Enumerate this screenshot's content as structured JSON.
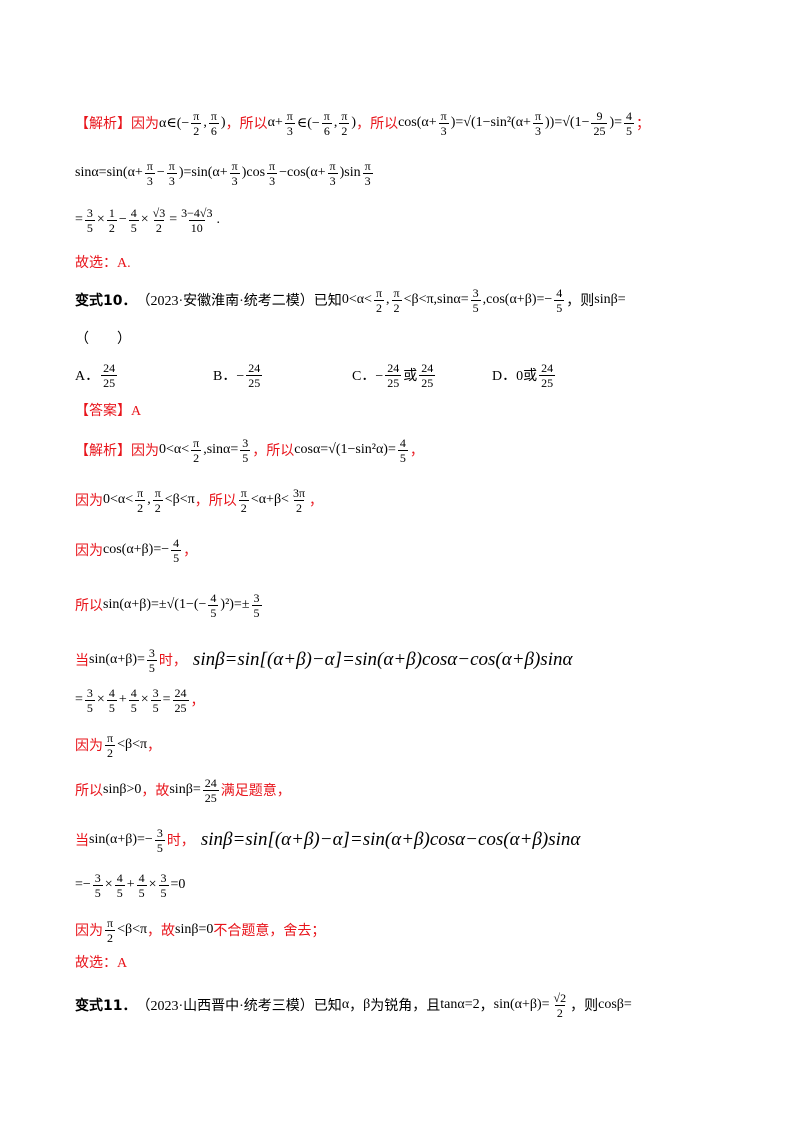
{
  "lines": [
    [
      {
        "r": "【解析】因为"
      },
      "α∈(−",
      {
        "n": "π",
        "d": "2"
      },
      ",",
      {
        "n": "π",
        "d": "6"
      },
      ")",
      {
        "r": "，所以"
      },
      "α+",
      {
        "n": "π",
        "d": "3"
      },
      "∈(−",
      {
        "n": "π",
        "d": "6"
      },
      ",",
      {
        "n": "π",
        "d": "2"
      },
      ")",
      {
        "r": "，所以"
      },
      "cos(α+",
      {
        "n": "π",
        "d": "3"
      },
      ")=√(1−sin²(α+",
      {
        "n": "π",
        "d": "3"
      },
      "))=√(1−",
      {
        "n": "9",
        "d": "25"
      },
      ")=",
      {
        "n": "4",
        "d": "5"
      },
      {
        "r": "；"
      }
    ],
    [
      "sinα=sin(α+",
      {
        "n": "π",
        "d": "3"
      },
      "−",
      {
        "n": "π",
        "d": "3"
      },
      ")=sin(α+",
      {
        "n": "π",
        "d": "3"
      },
      ")cos",
      {
        "n": "π",
        "d": "3"
      },
      "−cos(α+",
      {
        "n": "π",
        "d": "3"
      },
      ")sin",
      {
        "n": "π",
        "d": "3"
      }
    ],
    [
      "=",
      {
        "n": "3",
        "d": "5"
      },
      "×",
      {
        "n": "1",
        "d": "2"
      },
      "−",
      {
        "n": "4",
        "d": "5"
      },
      "×",
      {
        "n": "√3",
        "d": "2"
      },
      "=",
      {
        "n": "3−4√3",
        "d": "10"
      },
      "."
    ],
    [
      {
        "r": "故选：A."
      }
    ],
    [
      {
        "b": "变式10．"
      },
      "（2023·安徽淮南·统考二模）已知",
      "0<α<",
      {
        "n": "π",
        "d": "2"
      },
      ",",
      {
        "n": "π",
        "d": "2"
      },
      "<β<π,sinα=",
      {
        "n": "3",
        "d": "5"
      },
      ",cos(α+β)=−",
      {
        "n": "4",
        "d": "5"
      },
      "，则",
      "sinβ="
    ],
    [
      "（　　）"
    ],
    [],
    [
      {
        "r": "【答案】A"
      }
    ],
    [
      {
        "r": "【解析】因为"
      },
      "0<α<",
      {
        "n": "π",
        "d": "2"
      },
      ",sinα=",
      {
        "n": "3",
        "d": "5"
      },
      {
        "r": "，所以"
      },
      "cosα=√(1−sin²α)=",
      {
        "n": "4",
        "d": "5"
      },
      {
        "r": "，"
      }
    ],
    [
      {
        "r": "因为"
      },
      "0<α<",
      {
        "n": "π",
        "d": "2"
      },
      ",",
      {
        "n": "π",
        "d": "2"
      },
      "<β<π",
      {
        "r": "，所以"
      },
      {
        "n": "π",
        "d": "2"
      },
      "<α+β<",
      {
        "n": "3π",
        "d": "2"
      },
      {
        "r": "，"
      }
    ],
    [
      {
        "r": "因为"
      },
      "cos(α+β)=−",
      {
        "n": "4",
        "d": "5"
      },
      {
        "r": "，"
      }
    ],
    [
      {
        "r": "所以"
      },
      "sin(α+β)=±√(1−(−",
      {
        "n": "4",
        "d": "5"
      },
      ")²)=±",
      {
        "n": "3",
        "d": "5"
      }
    ],
    [
      {
        "r": "当"
      },
      "sin(α+β)=",
      {
        "n": "3",
        "d": "5"
      },
      {
        "r": "时，"
      },
      {
        "L": "sinβ=sin[(α+β)−α]=sin(α+β)cosα−cos(α+β)sinα"
      }
    ],
    [
      "=",
      {
        "n": "3",
        "d": "5"
      },
      "×",
      {
        "n": "4",
        "d": "5"
      },
      "+",
      {
        "n": "4",
        "d": "5"
      },
      "×",
      {
        "n": "3",
        "d": "5"
      },
      "=",
      {
        "n": "24",
        "d": "25"
      },
      {
        "r": "，"
      }
    ],
    [
      {
        "r": "因为"
      },
      {
        "n": "π",
        "d": "2"
      },
      "<β<π",
      {
        "r": "，"
      }
    ],
    [
      {
        "r": "所以"
      },
      "sinβ>0",
      {
        "r": "，故"
      },
      "sinβ=",
      {
        "n": "24",
        "d": "25"
      },
      {
        "r": "满足题意，"
      }
    ],
    [
      {
        "r": "当"
      },
      "sin(α+β)=−",
      {
        "n": "3",
        "d": "5"
      },
      {
        "r": "时，"
      },
      {
        "L": "sinβ=sin[(α+β)−α]=sin(α+β)cosα−cos(α+β)sinα"
      }
    ],
    [
      "=−",
      {
        "n": "3",
        "d": "5"
      },
      "×",
      {
        "n": "4",
        "d": "5"
      },
      "+",
      {
        "n": "4",
        "d": "5"
      },
      "×",
      {
        "n": "3",
        "d": "5"
      },
      "=0"
    ],
    [
      {
        "r": "因为"
      },
      {
        "n": "π",
        "d": "2"
      },
      "<β<π",
      {
        "r": "，故"
      },
      "sinβ=0",
      {
        "r": "不合题意，舍去；"
      }
    ],
    [
      {
        "r": "故选：A"
      }
    ],
    [
      {
        "b": "变式11．"
      },
      "（2023·山西晋中·统考三模）已知",
      "α",
      "，",
      "β",
      "为锐角，且",
      "tanα=2",
      "，",
      "sin(α+β)=",
      {
        "n": "√2",
        "d": "2"
      },
      "，则",
      "cosβ="
    ]
  ],
  "options": [
    [
      "A．",
      {
        "n": "24",
        "d": "25"
      }
    ],
    [
      "B．−",
      {
        "n": "24",
        "d": "25"
      }
    ],
    [
      "C．−",
      {
        "n": "24",
        "d": "25"
      },
      "或",
      {
        "n": "24",
        "d": "25"
      }
    ],
    [
      "D．0或",
      {
        "n": "24",
        "d": "25"
      }
    ]
  ]
}
